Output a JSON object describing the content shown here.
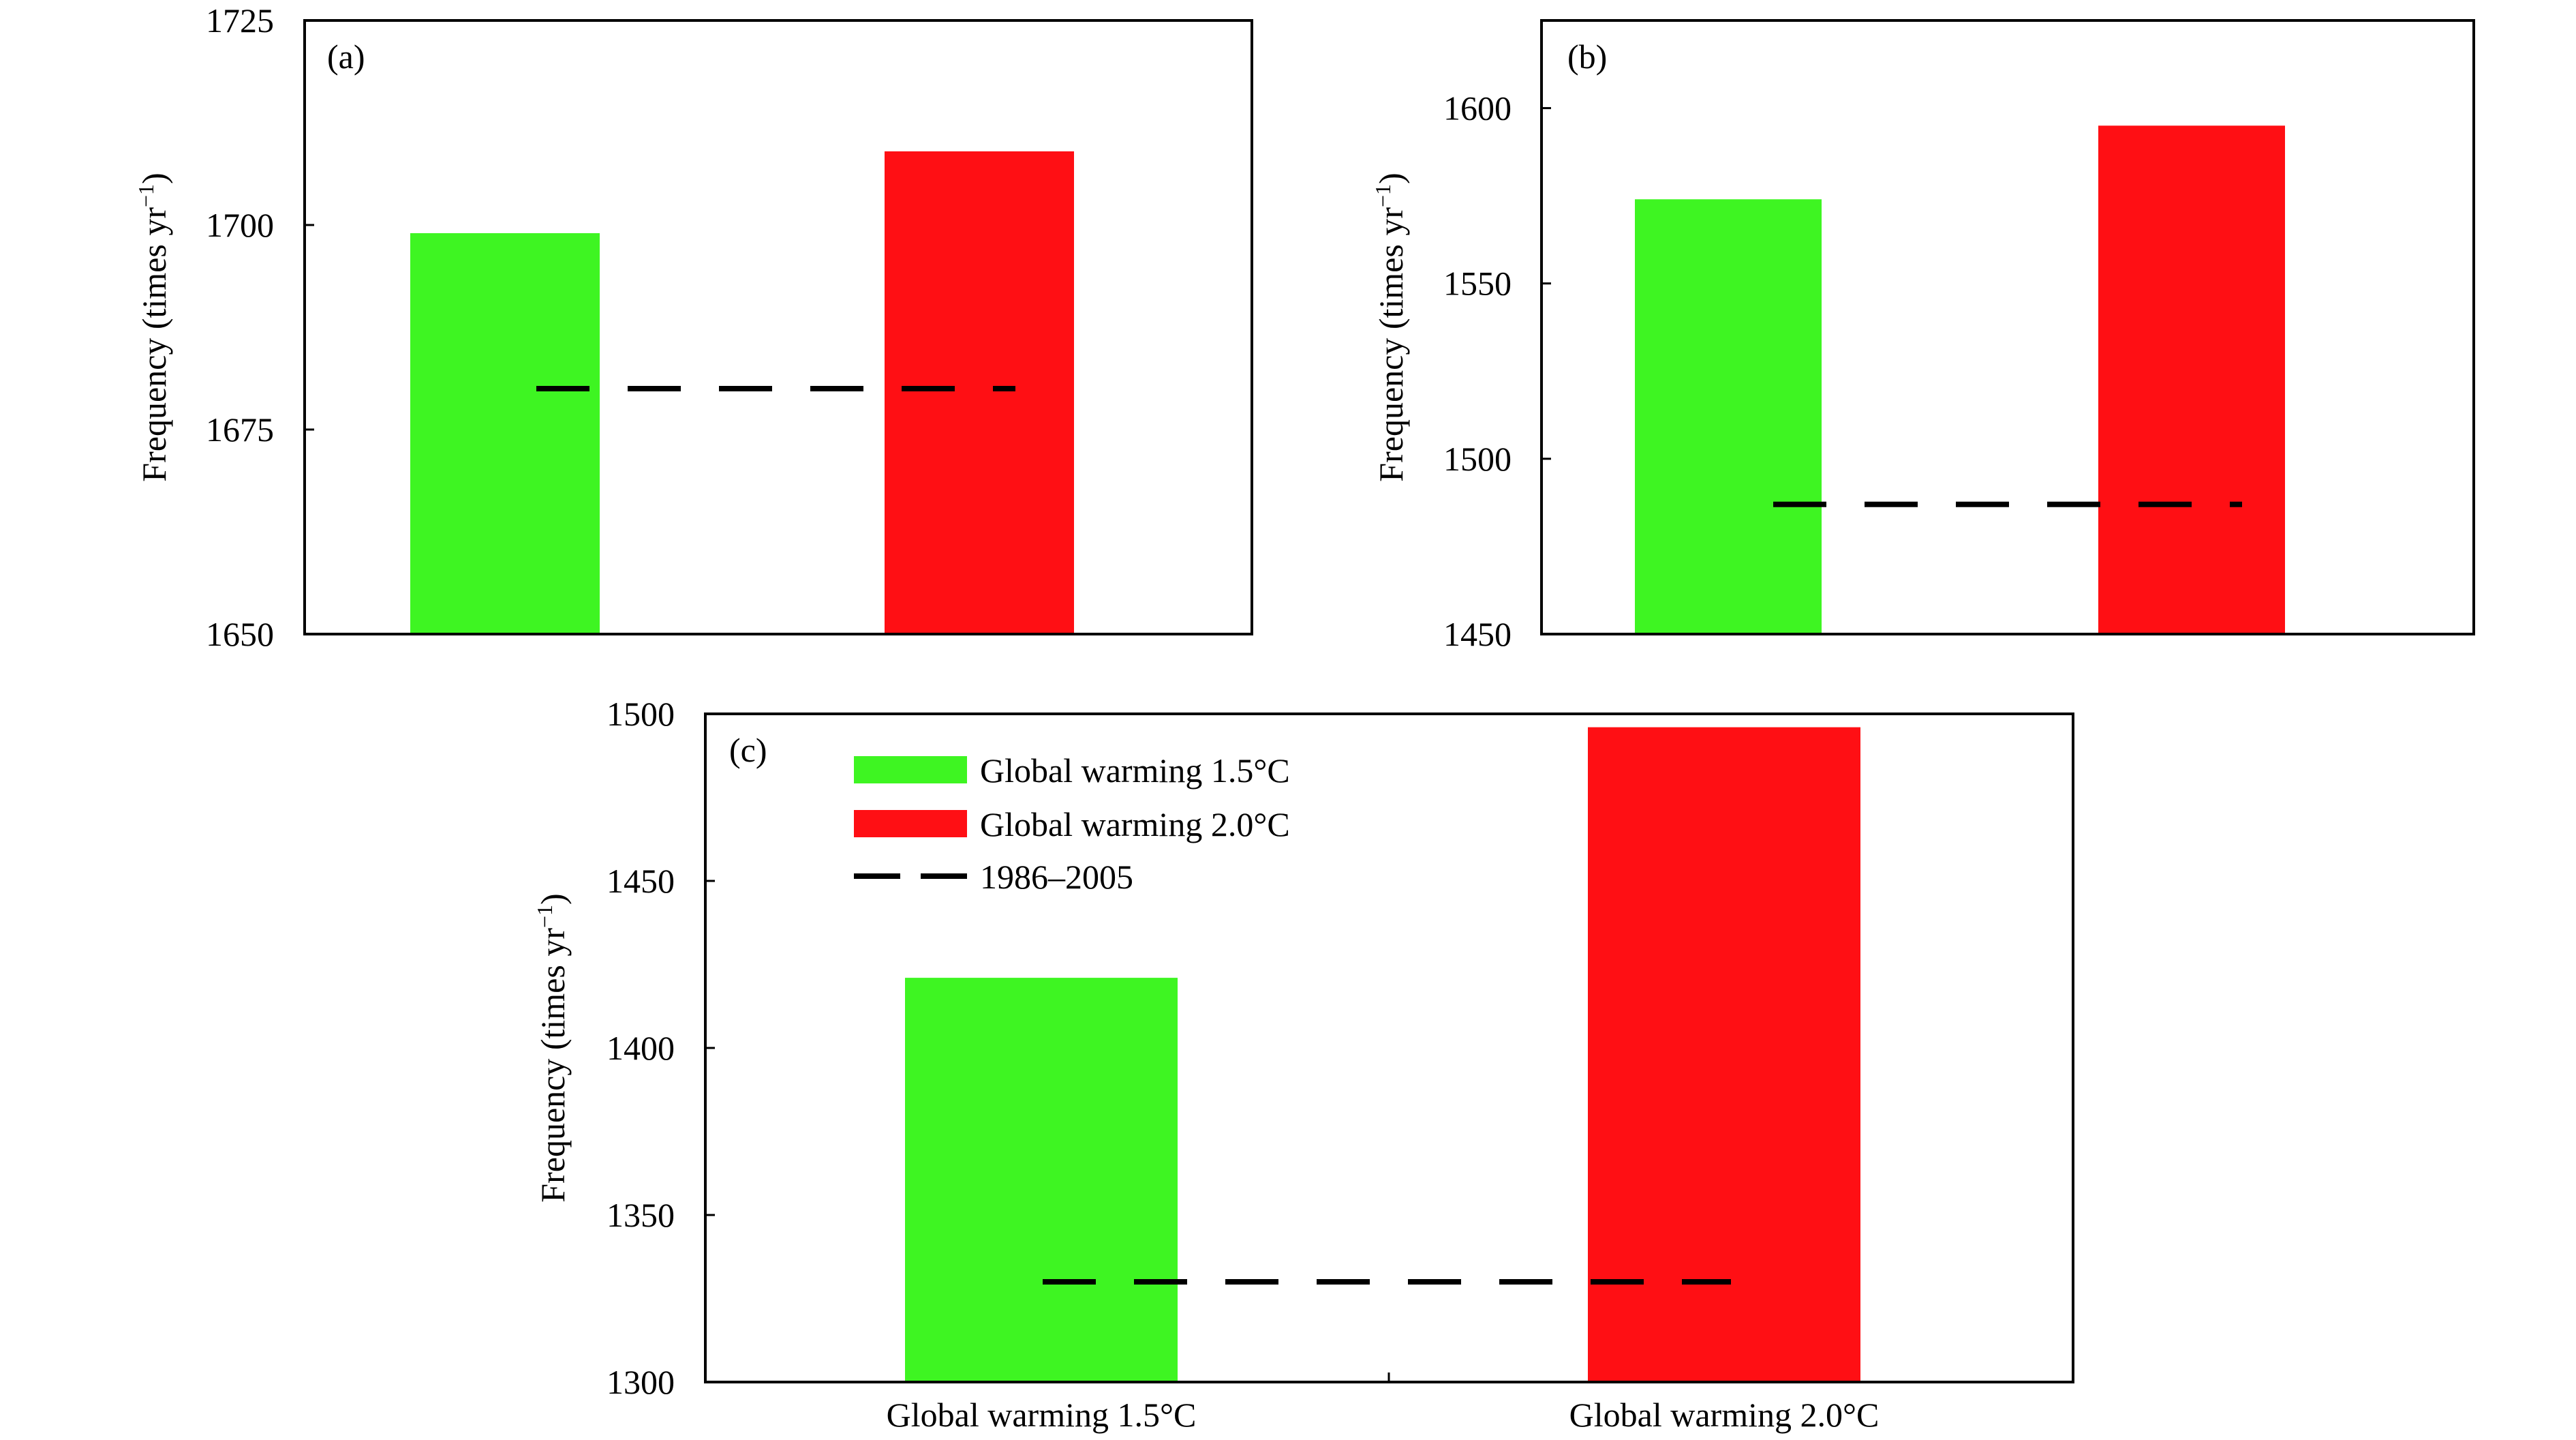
{
  "colors": {
    "series_1": "#3ef522",
    "series_2": "#ff0f14",
    "baseline": "#000000"
  },
  "chart_data": [
    {
      "type": "bar",
      "panel_label": "(a)",
      "categories": [
        "Global warming 1.5°C",
        "Global warming 2.0°C"
      ],
      "values": [
        1699,
        1709
      ],
      "baseline": 1680,
      "ylabel": "Frequency (times yr",
      "ylabel_sup": "−1",
      "ylabel_end": ")",
      "ylim": [
        1650,
        1725
      ],
      "yticks": [
        1650,
        1675,
        1700,
        1725
      ],
      "ytick_labels": [
        "1650",
        "1675",
        "1700",
        "1725"
      ]
    },
    {
      "type": "bar",
      "panel_label": "(b)",
      "categories": [
        "Global warming 1.5°C",
        "Global warming 2.0°C"
      ],
      "values": [
        1574,
        1595
      ],
      "baseline": 1487,
      "ylabel": "Frequency (times yr",
      "ylabel_sup": "−1",
      "ylabel_end": ")",
      "ylim": [
        1450,
        1625
      ],
      "yticks": [
        1450,
        1500,
        1550,
        1600
      ],
      "ytick_labels": [
        "1450",
        "1500",
        "1550",
        "1600"
      ]
    },
    {
      "type": "bar",
      "panel_label": "(c)",
      "categories": [
        "Global warming 1.5°C",
        "Global warming 2.0°C"
      ],
      "category_labels": [
        "Global warming 1.5°C",
        "Global warming 2.0°C"
      ],
      "values": [
        1421,
        1496
      ],
      "baseline": 1330,
      "ylabel": "Frequency (times yr",
      "ylabel_sup": "−1",
      "ylabel_end": ")",
      "ylim": [
        1300,
        1500
      ],
      "yticks": [
        1300,
        1350,
        1400,
        1450,
        1500
      ],
      "ytick_labels": [
        "1300",
        "1350",
        "1400",
        "1450",
        "1500"
      ],
      "legend": [
        {
          "label": "Global warming 1.5°C",
          "kind": "bar"
        },
        {
          "label": "Global warming 2.0°C",
          "kind": "bar"
        },
        {
          "label": "1986–2005",
          "kind": "dashed-line"
        }
      ]
    }
  ]
}
